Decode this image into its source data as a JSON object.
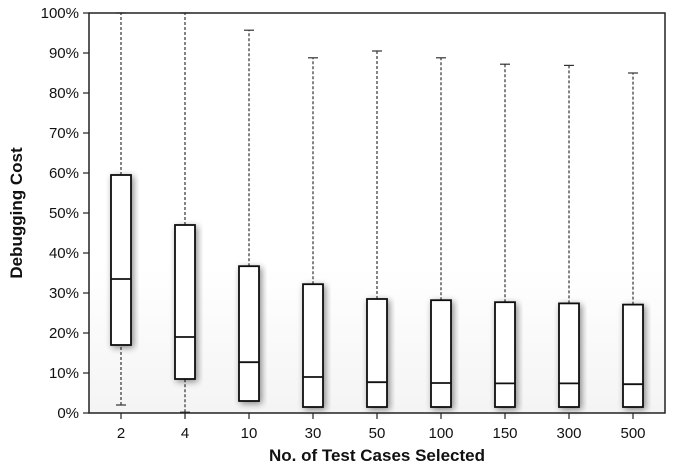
{
  "chart_data": {
    "type": "box",
    "xlabel": "No. of Test Cases Selected",
    "ylabel": "Debugging Cost",
    "ylim": [
      0,
      100
    ],
    "y_ticks": [
      0,
      10,
      20,
      30,
      40,
      50,
      60,
      70,
      80,
      90,
      100
    ],
    "y_tick_labels": [
      "0%",
      "10%",
      "20%",
      "30%",
      "40%",
      "50%",
      "60%",
      "70%",
      "80%",
      "90%",
      "100%"
    ],
    "categories": [
      "2",
      "4",
      "10",
      "30",
      "50",
      "100",
      "150",
      "300",
      "500"
    ],
    "boxes": [
      {
        "min": 2,
        "q1": 17,
        "median": 33.5,
        "q3": 59.5,
        "max": 100
      },
      {
        "min": 0.2,
        "q1": 8.5,
        "median": 19,
        "q3": 47,
        "max": 100
      },
      {
        "min": 3,
        "q1": 3,
        "median": 12.7,
        "q3": 36.7,
        "max": 95.7
      },
      {
        "min": 1.5,
        "q1": 1.5,
        "median": 9,
        "q3": 32.2,
        "max": 88.8
      },
      {
        "min": 1.5,
        "q1": 1.5,
        "median": 7.7,
        "q3": 28.5,
        "max": 90.5
      },
      {
        "min": 1.5,
        "q1": 1.5,
        "median": 7.5,
        "q3": 28.2,
        "max": 88.8
      },
      {
        "min": 1.5,
        "q1": 1.5,
        "median": 7.4,
        "q3": 27.7,
        "max": 87.2
      },
      {
        "min": 1.5,
        "q1": 1.5,
        "median": 7.4,
        "q3": 27.4,
        "max": 86.9
      },
      {
        "min": 1.5,
        "q1": 1.5,
        "median": 7.2,
        "q3": 27.1,
        "max": 85
      }
    ],
    "grid": false,
    "legend": "none"
  }
}
